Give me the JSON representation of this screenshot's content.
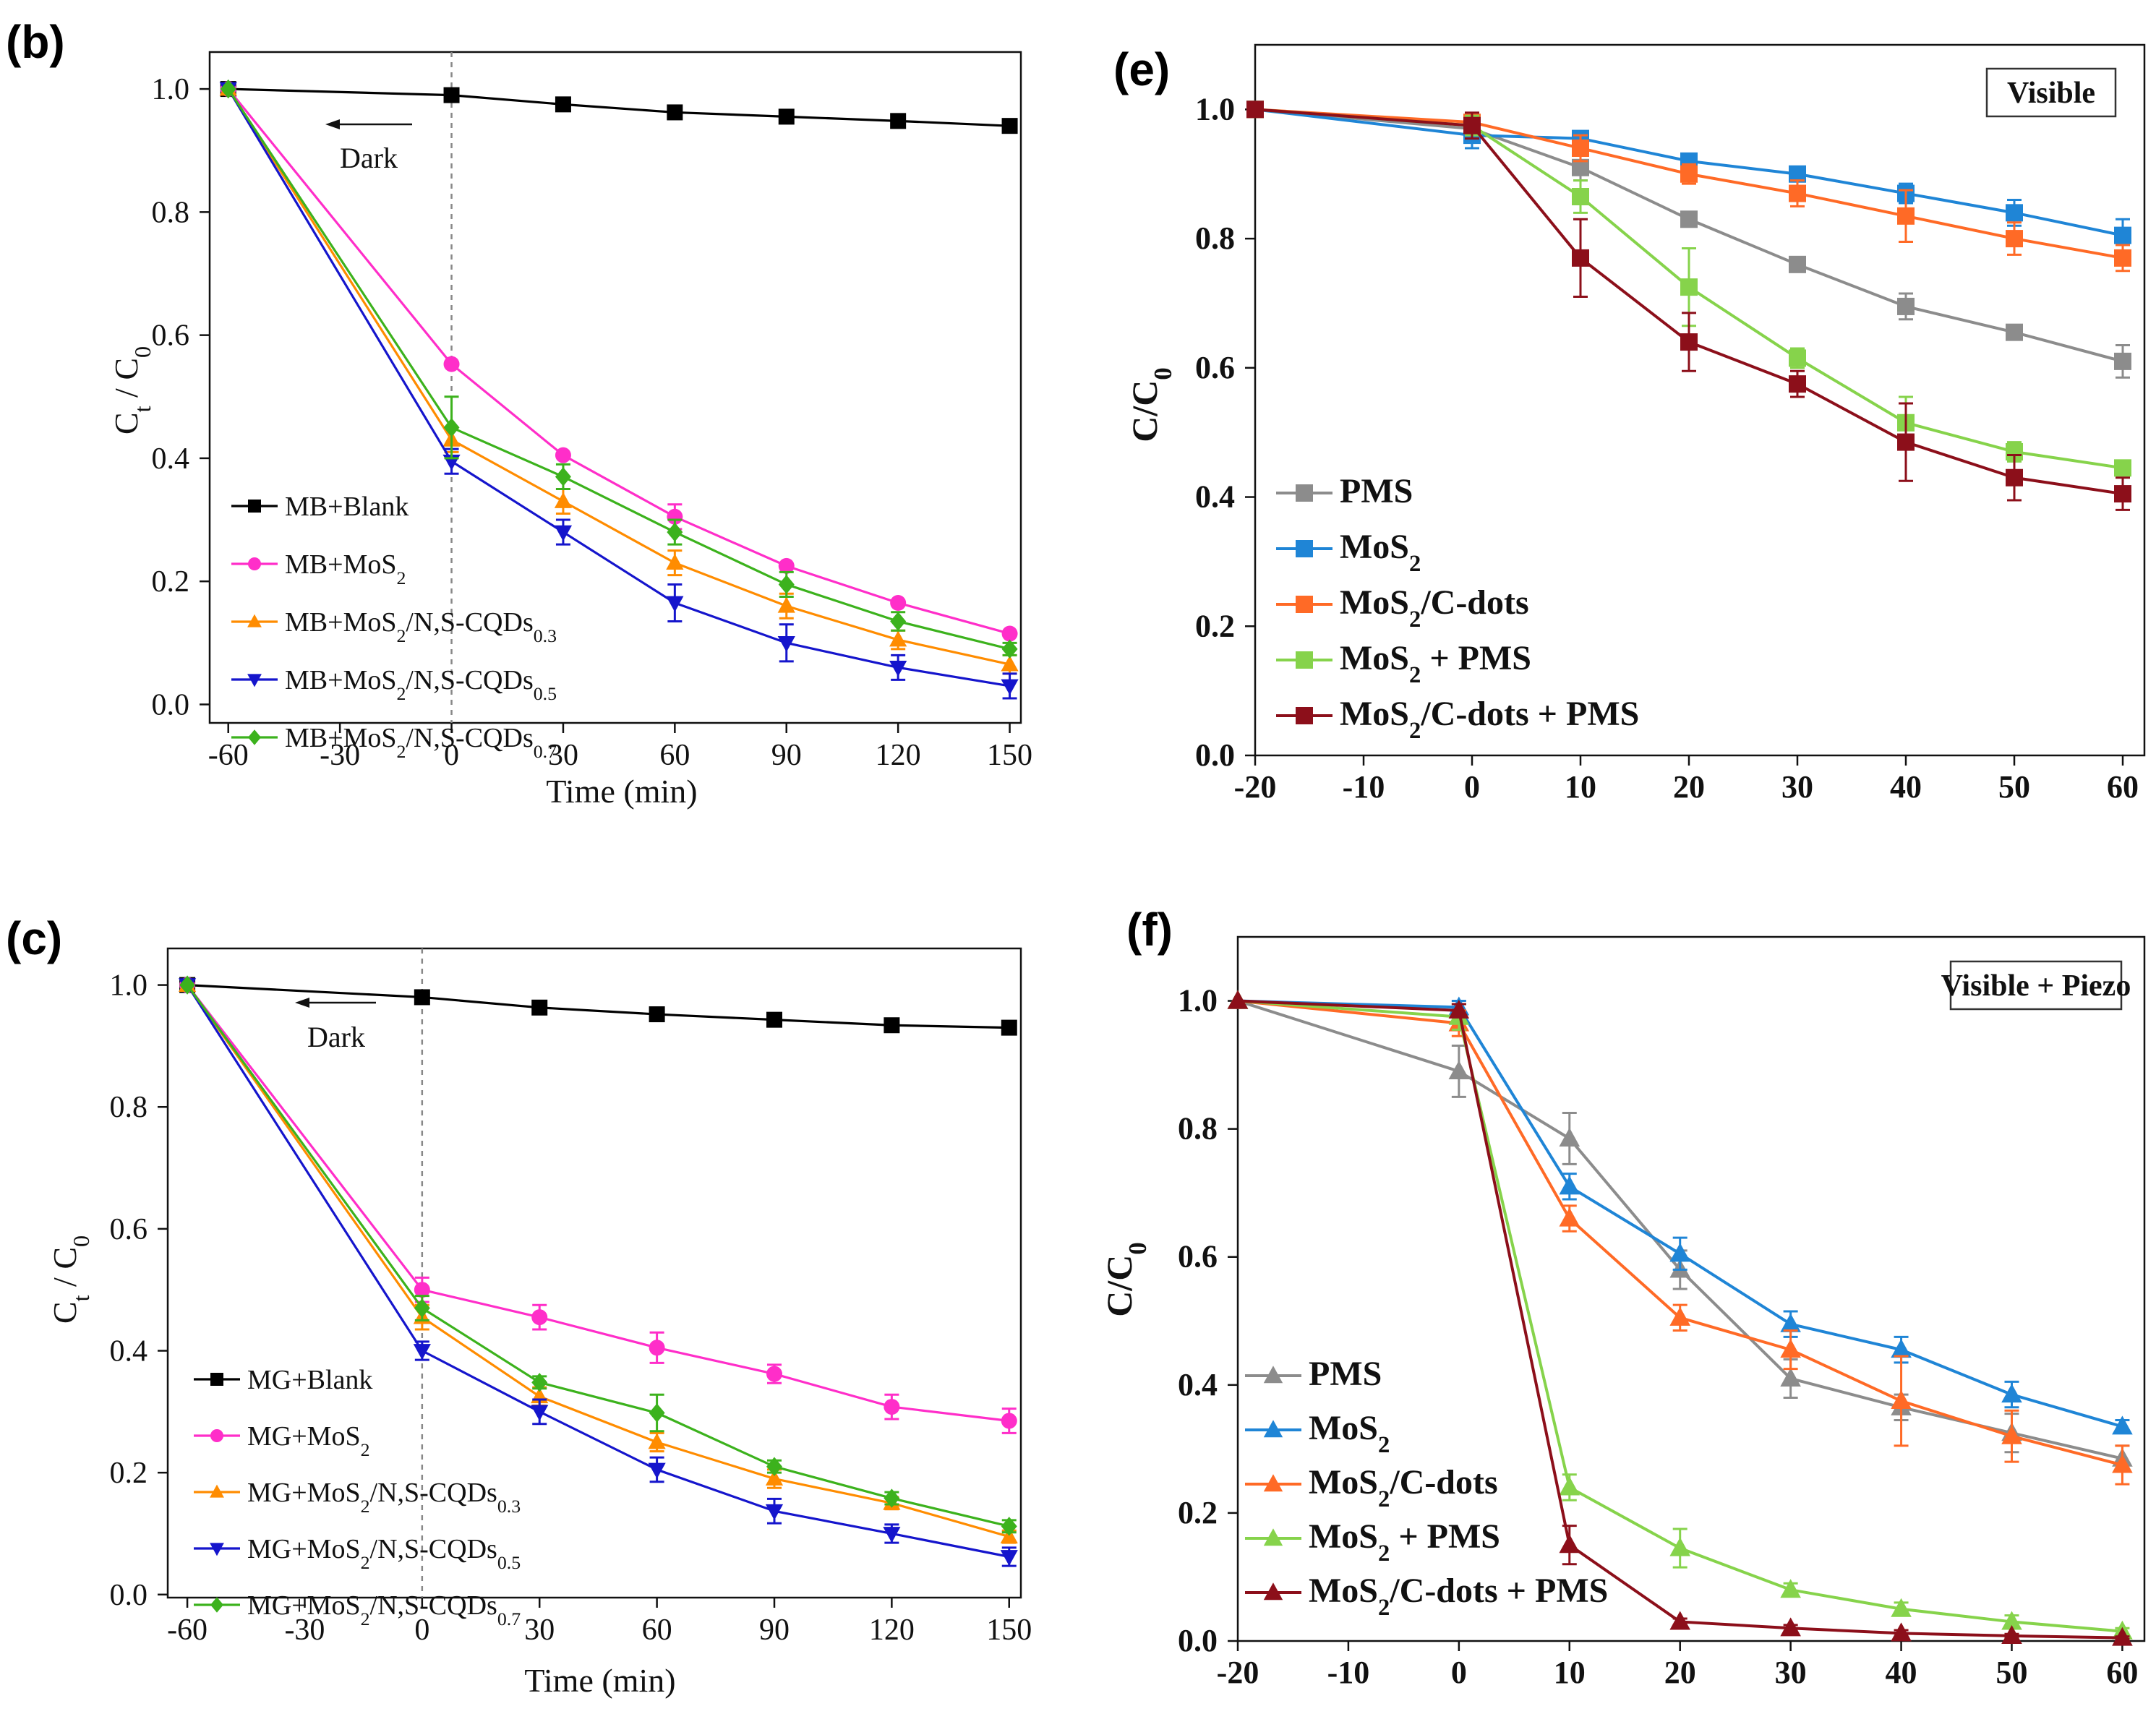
{
  "chart_data": [
    {
      "panel": "(b)",
      "type": "line",
      "title": "",
      "xlabel": "Time (min)",
      "ylabel": "Ct / C0",
      "ylabel_main": "C",
      "ylabel_sub1": "t",
      "ylabel_mid": " / C",
      "ylabel_sub2": "0",
      "xlim": [
        -65,
        153
      ],
      "ylim": [
        -0.03,
        1.06
      ],
      "xticks": [
        -60,
        -30,
        0,
        30,
        60,
        90,
        120,
        150
      ],
      "yticks": [
        0.0,
        0.2,
        0.4,
        0.6,
        0.8,
        1.0
      ],
      "xtick_labels": [
        "-60",
        "-30",
        "0",
        "30",
        "60",
        "90",
        "120",
        "150"
      ],
      "ytick_labels": [
        "0.0",
        "0.2",
        "0.4",
        "0.6",
        "0.8",
        "1.0"
      ],
      "annotation": "Dark",
      "dark_line_x": 0,
      "x": [
        -60,
        0,
        30,
        60,
        90,
        120,
        150
      ],
      "series": [
        {
          "name": "MB+Blank",
          "label_main": "MB+Blank",
          "label_tail": "",
          "label_sub": "",
          "color": "#000000",
          "marker": "square",
          "values": [
            1.0,
            0.99,
            0.975,
            0.962,
            0.955,
            0.948,
            0.94
          ],
          "errors": [
            0,
            0,
            0,
            0,
            0,
            0,
            0
          ]
        },
        {
          "name": "MB+MoS2",
          "label_main": "MB+MoS",
          "label_tail": "",
          "label_sub": "2",
          "color": "#ff2ec9",
          "marker": "circle",
          "values": [
            1.0,
            0.553,
            0.405,
            0.305,
            0.225,
            0.165,
            0.115
          ],
          "errors": [
            0,
            0,
            0,
            0.02,
            0,
            0,
            0
          ]
        },
        {
          "name": "MB+MoS2/N,S-CQDs0.3",
          "label_main": "MB+MoS",
          "label_tail": "/N,S-CQDs",
          "label_sub": "2",
          "label_sub2": "0.3",
          "color": "#ff8c00",
          "marker": "triangle-up",
          "values": [
            1.0,
            0.43,
            0.33,
            0.23,
            0.16,
            0.105,
            0.065
          ],
          "errors": [
            0,
            0.02,
            0.02,
            0.02,
            0.02,
            0.015,
            0.015
          ]
        },
        {
          "name": "MB+MoS2/N,S-CQDs0.5",
          "label_main": "MB+MoS",
          "label_tail": "/N,S-CQDs",
          "label_sub": "2",
          "label_sub2": "0.5",
          "color": "#1515cc",
          "marker": "triangle-down",
          "values": [
            1.0,
            0.395,
            0.28,
            0.165,
            0.1,
            0.06,
            0.03
          ],
          "errors": [
            0,
            0.02,
            0.02,
            0.03,
            0.03,
            0.02,
            0.02
          ]
        },
        {
          "name": "MB+MoS2/N,S-CQDs0.7",
          "label_main": "MB+MoS",
          "label_tail": "/N,S-CQDs",
          "label_sub": "2",
          "label_sub2": "0.7",
          "color": "#3cb21d",
          "marker": "diamond",
          "values": [
            1.0,
            0.45,
            0.37,
            0.28,
            0.195,
            0.135,
            0.09
          ],
          "errors": [
            0,
            0.05,
            0.02,
            0.02,
            0.02,
            0.015,
            0.01
          ]
        }
      ]
    },
    {
      "panel": "(c)",
      "type": "line",
      "title": "",
      "xlabel": "Time (min)",
      "ylabel": "Ct / C0",
      "ylabel_main": "C",
      "ylabel_sub1": "t",
      "ylabel_mid": " / C",
      "ylabel_sub2": "0",
      "xlim": [
        -65,
        153
      ],
      "ylim": [
        -0.005,
        1.06
      ],
      "xticks": [
        -60,
        -30,
        0,
        30,
        60,
        90,
        120,
        150
      ],
      "yticks": [
        0.0,
        0.2,
        0.4,
        0.6,
        0.8,
        1.0
      ],
      "xtick_labels": [
        "-60",
        "-30",
        "0",
        "30",
        "60",
        "90",
        "120",
        "150"
      ],
      "ytick_labels": [
        "0.0",
        "0.2",
        "0.4",
        "0.6",
        "0.8",
        "1.0"
      ],
      "annotation": "Dark",
      "dark_line_x": 0,
      "x": [
        -60,
        0,
        30,
        60,
        90,
        120,
        150
      ],
      "series": [
        {
          "name": "MG+Blank",
          "label_main": "MG+Blank",
          "label_tail": "",
          "label_sub": "",
          "color": "#000000",
          "marker": "square",
          "values": [
            1.0,
            0.98,
            0.963,
            0.952,
            0.943,
            0.934,
            0.93
          ],
          "errors": [
            0,
            0,
            0,
            0,
            0,
            0,
            0
          ]
        },
        {
          "name": "MG+MoS2",
          "label_main": "MG+MoS",
          "label_tail": "",
          "label_sub": "2",
          "color": "#ff2ec9",
          "marker": "circle",
          "values": [
            1.0,
            0.5,
            0.455,
            0.405,
            0.362,
            0.308,
            0.285
          ],
          "errors": [
            0,
            0.02,
            0.02,
            0.025,
            0.015,
            0.02,
            0.02
          ]
        },
        {
          "name": "MG+MoS2/N,S-CQDs0.3",
          "label_main": "MG+MoS",
          "label_tail": "/N,S-CQDs",
          "label_sub": "2",
          "label_sub2": "0.3",
          "color": "#ff8c00",
          "marker": "triangle-up",
          "values": [
            1.0,
            0.455,
            0.325,
            0.25,
            0.19,
            0.15,
            0.095
          ],
          "errors": [
            0,
            0.02,
            0.015,
            0.015,
            0.015,
            0.01,
            0.01
          ]
        },
        {
          "name": "MG+MoS2/N,S-CQDs0.5",
          "label_main": "MG+MoS",
          "label_tail": "/N,S-CQDs",
          "label_sub": "2",
          "label_sub2": "0.5",
          "color": "#1515cc",
          "marker": "triangle-down",
          "values": [
            1.0,
            0.4,
            0.3,
            0.205,
            0.137,
            0.1,
            0.062
          ],
          "errors": [
            0,
            0.015,
            0.02,
            0.02,
            0.02,
            0.015,
            0.015
          ]
        },
        {
          "name": "MG+MoS2/N,S-CQDs0.7",
          "label_main": "MG+MoS",
          "label_tail": "/N,S-CQDs",
          "label_sub": "2",
          "label_sub2": "0.7",
          "color": "#3cb21d",
          "marker": "diamond",
          "values": [
            1.0,
            0.47,
            0.348,
            0.298,
            0.21,
            0.158,
            0.112
          ],
          "errors": [
            0,
            0.02,
            0.01,
            0.03,
            0.01,
            0.01,
            0.01
          ]
        }
      ]
    },
    {
      "panel": "(e)",
      "type": "line",
      "title": "",
      "xlabel": "",
      "ylabel": "C/C0",
      "ylabel_main": "C/C",
      "ylabel_sub1": "",
      "ylabel_mid": "",
      "ylabel_sub2": "0",
      "box_label": "Visible",
      "xlim": [
        -20,
        62
      ],
      "ylim": [
        0.0,
        1.1
      ],
      "xticks": [
        -20,
        -10,
        0,
        10,
        20,
        30,
        40,
        50,
        60
      ],
      "yticks": [
        0.0,
        0.2,
        0.4,
        0.6,
        0.8,
        1.0
      ],
      "xtick_labels": [
        "-20",
        "-10",
        "0",
        "10",
        "20",
        "30",
        "40",
        "50",
        "60"
      ],
      "ytick_labels": [
        "0.0",
        "0.2",
        "0.4",
        "0.6",
        "0.8",
        "1.0"
      ],
      "x": [
        -20,
        0,
        10,
        20,
        30,
        40,
        50,
        60
      ],
      "series": [
        {
          "name": "PMS",
          "label_main": "PMS",
          "label_tail": "",
          "label_sub": "",
          "color": "#8c8c8c",
          "marker": "square",
          "values": [
            1.0,
            0.97,
            0.91,
            0.83,
            0.76,
            0.695,
            0.655,
            0.61
          ],
          "errors": [
            0,
            0.02,
            0.02,
            0.01,
            0.01,
            0.02,
            0.01,
            0.025
          ]
        },
        {
          "name": "MoS2",
          "label_main": "MoS",
          "label_tail": "",
          "label_sub": "2",
          "color": "#1f85d6",
          "marker": "square",
          "values": [
            1.0,
            0.96,
            0.955,
            0.92,
            0.9,
            0.87,
            0.84,
            0.805
          ],
          "errors": [
            0,
            0.02,
            0.01,
            0.01,
            0.01,
            0.015,
            0.02,
            0.025
          ]
        },
        {
          "name": "MoS2/C-dots",
          "label_main": "MoS",
          "label_tail": "/C-dots",
          "label_sub": "2",
          "color": "#ff6a26",
          "marker": "square",
          "values": [
            1.0,
            0.98,
            0.94,
            0.9,
            0.87,
            0.835,
            0.8,
            0.77
          ],
          "errors": [
            0,
            0.01,
            0.02,
            0.015,
            0.02,
            0.04,
            0.025,
            0.02
          ]
        },
        {
          "name": "MoS2 + PMS",
          "label_main": "MoS",
          "label_tail": " + PMS",
          "label_sub": "2",
          "color": "#86d34b",
          "marker": "square",
          "values": [
            1.0,
            0.975,
            0.865,
            0.725,
            0.615,
            0.515,
            0.47,
            0.445
          ],
          "errors": [
            0,
            0.015,
            0.025,
            0.06,
            0.015,
            0.04,
            0.015,
            0.01
          ]
        },
        {
          "name": "MoS2/C-dots + PMS",
          "label_main": "MoS",
          "label_tail": "/C-dots + PMS",
          "label_sub": "2",
          "color": "#8c0f1a",
          "marker": "square",
          "values": [
            1.0,
            0.975,
            0.77,
            0.64,
            0.575,
            0.485,
            0.43,
            0.405
          ],
          "errors": [
            0,
            0.02,
            0.06,
            0.045,
            0.02,
            0.06,
            0.035,
            0.025
          ]
        }
      ]
    },
    {
      "panel": "(f)",
      "type": "line",
      "title": "",
      "xlabel": "",
      "ylabel": "C/C0",
      "ylabel_main": "C/C",
      "ylabel_sub1": "",
      "ylabel_mid": "",
      "ylabel_sub2": "0",
      "box_label": "Visible + Piezo",
      "xlim": [
        -20,
        62
      ],
      "ylim": [
        0.0,
        1.1
      ],
      "xticks": [
        -20,
        -10,
        0,
        10,
        20,
        30,
        40,
        50,
        60
      ],
      "yticks": [
        0.0,
        0.2,
        0.4,
        0.6,
        0.8,
        1.0
      ],
      "xtick_labels": [
        "-20",
        "-10",
        "0",
        "10",
        "20",
        "30",
        "40",
        "50",
        "60"
      ],
      "ytick_labels": [
        "0.0",
        "0.2",
        "0.4",
        "0.6",
        "0.8",
        "1.0"
      ],
      "x": [
        -20,
        0,
        10,
        20,
        30,
        40,
        50,
        60
      ],
      "series": [
        {
          "name": "PMS",
          "label_main": "PMS",
          "label_tail": "",
          "label_sub": "",
          "color": "#8c8c8c",
          "marker": "triangle-up",
          "values": [
            1.0,
            0.89,
            0.785,
            0.58,
            0.41,
            0.365,
            0.325,
            0.285
          ],
          "errors": [
            0,
            0.04,
            0.04,
            0.03,
            0.03,
            0.02,
            0.03,
            0.02
          ]
        },
        {
          "name": "MoS2",
          "label_main": "MoS",
          "label_tail": "",
          "label_sub": "2",
          "color": "#1f85d6",
          "marker": "triangle-up",
          "values": [
            1.0,
            0.99,
            0.71,
            0.605,
            0.495,
            0.455,
            0.385,
            0.335
          ],
          "errors": [
            0,
            0.01,
            0.02,
            0.025,
            0.02,
            0.02,
            0.02,
            0.01
          ]
        },
        {
          "name": "MoS2/C-dots",
          "label_main": "MoS",
          "label_tail": "/C-dots",
          "label_sub": "2",
          "color": "#ff6a26",
          "marker": "triangle-up",
          "values": [
            1.0,
            0.965,
            0.66,
            0.505,
            0.455,
            0.375,
            0.32,
            0.275
          ],
          "errors": [
            0,
            0.02,
            0.02,
            0.02,
            0.03,
            0.07,
            0.04,
            0.03
          ]
        },
        {
          "name": "MoS2 + PMS",
          "label_main": "MoS",
          "label_tail": " + PMS",
          "label_sub": "2",
          "color": "#86d34b",
          "marker": "triangle-up",
          "values": [
            1.0,
            0.975,
            0.24,
            0.145,
            0.08,
            0.05,
            0.03,
            0.015
          ],
          "errors": [
            0,
            0.02,
            0.02,
            0.03,
            0.01,
            0.01,
            0.01,
            0.005
          ]
        },
        {
          "name": "MoS2/C-dots + PMS",
          "label_main": "MoS",
          "label_tail": "/C-dots + PMS",
          "label_sub": "2",
          "color": "#8c0f1a",
          "marker": "triangle-up",
          "values": [
            1.0,
            0.985,
            0.15,
            0.03,
            0.02,
            0.012,
            0.008,
            0.005
          ],
          "errors": [
            0,
            0.01,
            0.03,
            0.005,
            0.005,
            0.005,
            0.003,
            0.002
          ]
        }
      ]
    }
  ]
}
